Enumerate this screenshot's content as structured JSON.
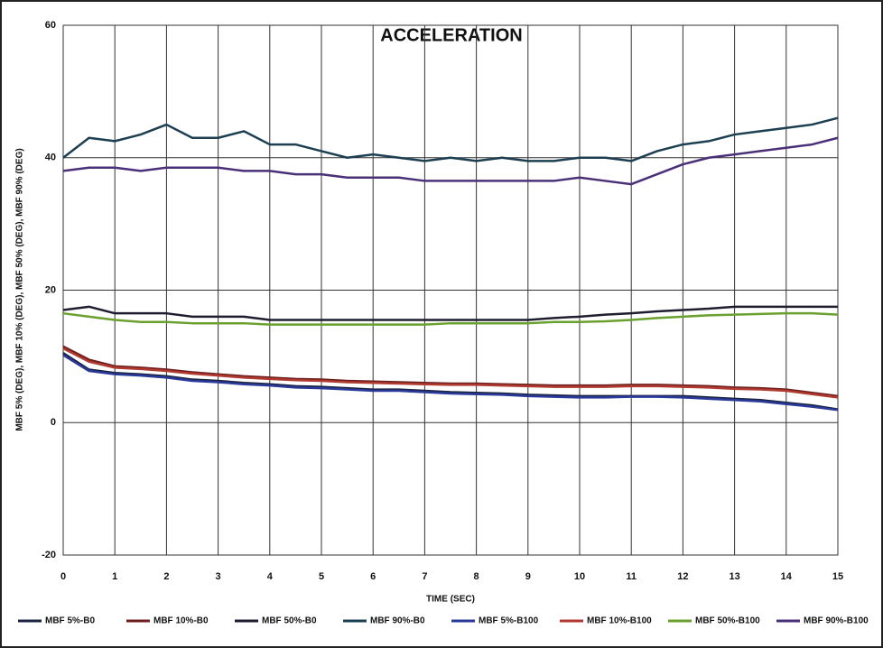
{
  "chart_data": {
    "type": "line",
    "title": "ACCELERATION",
    "xlabel": "TIME (SEC)",
    "ylabel": "MBF 5% (DEG), MBF 10% (DEG), MBF 50% (DEG), MBF 90% (DEG)",
    "xlim": [
      0,
      15
    ],
    "xticks": [
      0,
      1,
      2,
      3,
      4,
      5,
      6,
      7,
      8,
      9,
      10,
      11,
      12,
      13,
      14,
      15
    ],
    "ylim": [
      -20,
      60
    ],
    "yticks": [
      -20,
      0,
      20,
      40,
      60
    ],
    "grid": true,
    "legend": "bottom",
    "x": [
      0,
      0.5,
      1,
      1.5,
      2,
      2.5,
      3,
      3.5,
      4,
      4.5,
      5,
      5.5,
      6,
      6.5,
      7,
      7.5,
      8,
      8.5,
      9,
      9.5,
      10,
      10.5,
      11,
      11.5,
      12,
      12.5,
      13,
      13.5,
      14,
      14.5,
      15
    ],
    "series": [
      {
        "name": "MBF 5%-B0",
        "color": "#1b2440",
        "values": [
          10.5,
          8,
          7.5,
          7.3,
          7,
          6.5,
          6.3,
          6,
          5.8,
          5.5,
          5.4,
          5.2,
          5,
          5,
          4.8,
          4.6,
          4.5,
          4.4,
          4.2,
          4.1,
          4,
          4,
          4,
          4,
          4,
          3.8,
          3.6,
          3.4,
          3,
          2.6,
          2
        ]
      },
      {
        "name": "MBF 10%-B0",
        "color": "#6e2020",
        "values": [
          11.5,
          9.5,
          8.5,
          8.3,
          8,
          7.6,
          7.3,
          7,
          6.8,
          6.6,
          6.5,
          6.3,
          6.2,
          6.1,
          6,
          5.9,
          5.9,
          5.8,
          5.7,
          5.6,
          5.6,
          5.6,
          5.7,
          5.7,
          5.6,
          5.5,
          5.3,
          5.2,
          5,
          4.5,
          4
        ]
      },
      {
        "name": "MBF 50%-B0",
        "color": "#1e1e30",
        "values": [
          17,
          17.5,
          16.5,
          16.5,
          16.5,
          16,
          16,
          16,
          15.5,
          15.5,
          15.5,
          15.5,
          15.5,
          15.5,
          15.5,
          15.5,
          15.5,
          15.5,
          15.5,
          15.8,
          16,
          16.3,
          16.5,
          16.8,
          17,
          17.2,
          17.5,
          17.5,
          17.5,
          17.5,
          17.5
        ]
      },
      {
        "name": "MBF 90%-B0",
        "color": "#1d3f52",
        "values": [
          40,
          43,
          42.5,
          43.5,
          45,
          43,
          43,
          44,
          42,
          42,
          41,
          40,
          40.5,
          40,
          39.5,
          40,
          39.5,
          40,
          39.5,
          39.5,
          40,
          40,
          39.5,
          41,
          42,
          42.5,
          43.5,
          44,
          44.5,
          45,
          46
        ]
      },
      {
        "name": "MBF 5%-B100",
        "color": "#2a3a9a",
        "values": [
          10.2,
          7.8,
          7.3,
          7.1,
          6.8,
          6.3,
          6.1,
          5.8,
          5.6,
          5.3,
          5.2,
          5,
          4.8,
          4.8,
          4.6,
          4.4,
          4.3,
          4.2,
          4,
          3.9,
          3.8,
          3.8,
          3.9,
          3.9,
          3.8,
          3.6,
          3.4,
          3.2,
          2.8,
          2.4,
          1.9
        ]
      },
      {
        "name": "MBF 10%-B100",
        "color": "#b03a30",
        "values": [
          11.2,
          9.2,
          8.3,
          8.1,
          7.8,
          7.4,
          7.1,
          6.8,
          6.6,
          6.4,
          6.3,
          6.1,
          6,
          5.9,
          5.8,
          5.7,
          5.7,
          5.6,
          5.5,
          5.4,
          5.4,
          5.4,
          5.5,
          5.5,
          5.4,
          5.3,
          5.1,
          5,
          4.8,
          4.3,
          3.8
        ]
      },
      {
        "name": "MBF 50%-B100",
        "color": "#6aa02e",
        "values": [
          16.5,
          16,
          15.5,
          15.2,
          15.2,
          15,
          15,
          15,
          14.8,
          14.8,
          14.8,
          14.8,
          14.8,
          14.8,
          14.8,
          15,
          15,
          15,
          15,
          15.2,
          15.2,
          15.3,
          15.5,
          15.8,
          16,
          16.2,
          16.3,
          16.4,
          16.5,
          16.5,
          16.3
        ]
      },
      {
        "name": "MBF 90%-B100",
        "color": "#4a3078",
        "values": [
          38,
          38.5,
          38.5,
          38,
          38.5,
          38.5,
          38.5,
          38,
          38,
          37.5,
          37.5,
          37,
          37,
          37,
          36.5,
          36.5,
          36.5,
          36.5,
          36.5,
          36.5,
          37,
          36.5,
          36,
          37.5,
          39,
          40,
          40.5,
          41,
          41.5,
          42,
          43
        ]
      }
    ]
  }
}
